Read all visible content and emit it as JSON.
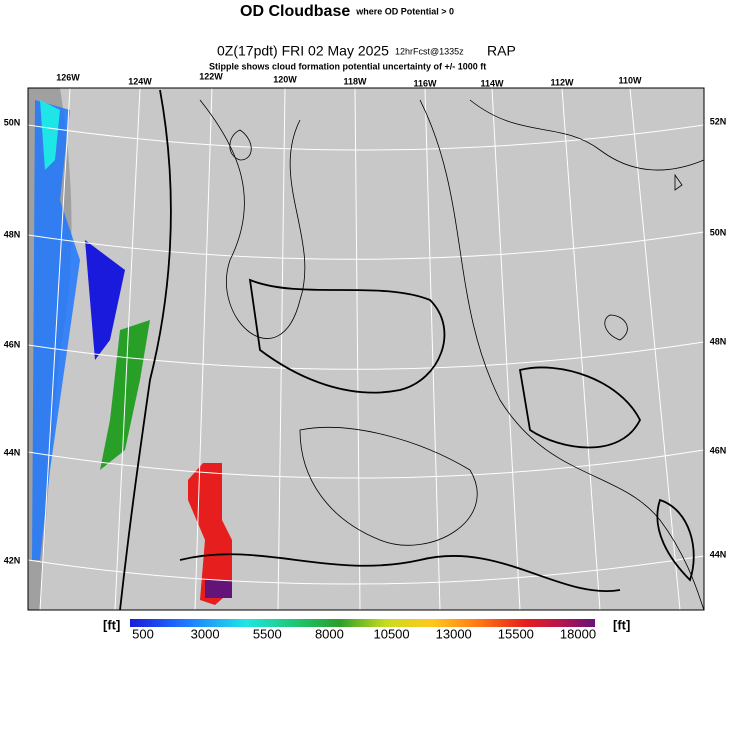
{
  "header": {
    "title": "OD Cloudbase",
    "title_note": "where OD Potential > 0",
    "subtitle": "0Z(17pdt) FRI 02 May 2025",
    "forecast_note": "12hrFcst@1335z",
    "model": "RAP",
    "note": "Stipple shows cloud formation potential uncertainty of +/- 1000 ft"
  },
  "map": {
    "top_labels": [
      "126W",
      "124W",
      "122W",
      "120W",
      "118W",
      "116W",
      "114W",
      "112W",
      "110W"
    ],
    "left_labels": [
      "50N",
      "48N",
      "46N",
      "44N",
      "42N"
    ],
    "right_labels": [
      "52N",
      "50N",
      "48N",
      "46N",
      "44N"
    ]
  },
  "colorbar": {
    "unit_left": "[ft]",
    "unit_right": "[ft]",
    "ticks": [
      500,
      3000,
      5500,
      8000,
      10500,
      13000,
      15500,
      18000
    ]
  }
}
